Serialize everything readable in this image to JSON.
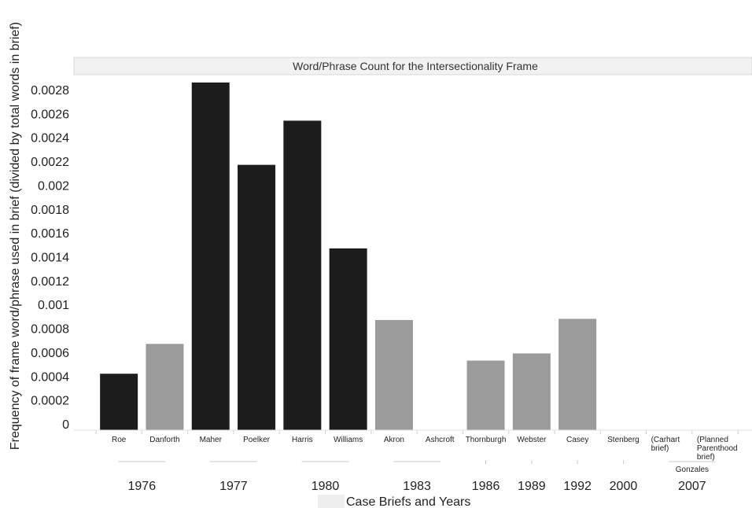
{
  "chart_data": {
    "type": "bar",
    "title": "Word/Phrase Count for the Intersectionality Frame",
    "ylabel": "Frequency of frame word/phrase used in brief (divided by total words in brief)",
    "xlabel": "Case Briefs and Years",
    "ylim": [
      0,
      0.0029
    ],
    "yticks": [
      "0",
      "0.0002",
      "0.0004",
      "0.0006",
      "0.0008",
      "0.001",
      "0.0012",
      "0.0014",
      "0.0016",
      "0.0018",
      "0.002",
      "0.0022",
      "0.0024",
      "0.0026",
      "0.0028"
    ],
    "categories": [
      [
        "Roe"
      ],
      [
        "Danforth"
      ],
      [
        "Maher"
      ],
      [
        "Poelker"
      ],
      [
        "Harris"
      ],
      [
        "Williams"
      ],
      [
        "Akron"
      ],
      [
        "Ashcroft"
      ],
      [
        "Thornburgh"
      ],
      [
        "Webster"
      ],
      [
        "Casey"
      ],
      [
        "Stenberg"
      ],
      [
        "(Carhart",
        "brief)"
      ],
      [
        "(Planned",
        "Parenthood",
        "brief)"
      ]
    ],
    "values": [
      0.00042,
      0.00067,
      0.00286,
      0.00217,
      0.00254,
      0.00147,
      0.00087,
      0,
      0.00053,
      0.00059,
      0.00088,
      0,
      0,
      0
    ],
    "bar_colors": [
      "#1c1c1c",
      "#9b9b9b",
      "#1c1c1c",
      "#1c1c1c",
      "#1c1c1c",
      "#1c1c1c",
      "#9b9b9b",
      "#9b9b9b",
      "#9b9b9b",
      "#9b9b9b",
      "#9b9b9b",
      "#9b9b9b",
      "#9b9b9b",
      "#9b9b9b"
    ],
    "year_groups": [
      {
        "label": "1976",
        "from": 0,
        "to": 1
      },
      {
        "label": "1977",
        "from": 2,
        "to": 3
      },
      {
        "label": "1980",
        "from": 4,
        "to": 5
      },
      {
        "label": "1983",
        "from": 6,
        "to": 7
      },
      {
        "label": "1986",
        "from": 8,
        "to": 8
      },
      {
        "label": "1989",
        "from": 9,
        "to": 9
      },
      {
        "label": "1992",
        "from": 10,
        "to": 10
      },
      {
        "label": "2000",
        "from": 11,
        "to": 11
      },
      {
        "label": "2007",
        "from": 12,
        "to": 13,
        "sublabel": "Gonzales"
      }
    ],
    "grid": false,
    "legend": "none"
  }
}
